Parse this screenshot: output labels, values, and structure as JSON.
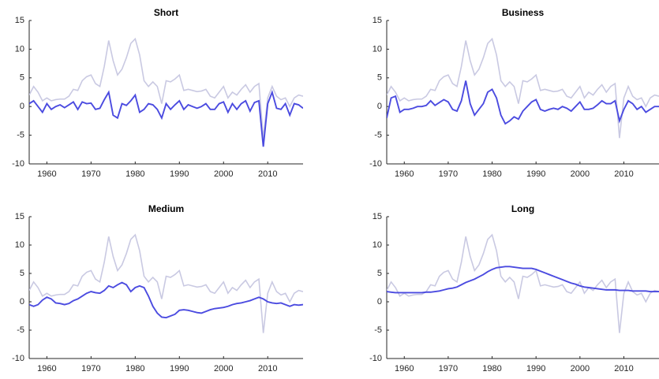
{
  "chart_data": [
    {
      "type": "line",
      "title": "Short",
      "x": [
        1956,
        1957,
        1958,
        1959,
        1960,
        1961,
        1962,
        1963,
        1964,
        1965,
        1966,
        1967,
        1968,
        1969,
        1970,
        1971,
        1972,
        1973,
        1974,
        1975,
        1976,
        1977,
        1978,
        1979,
        1980,
        1981,
        1982,
        1983,
        1984,
        1985,
        1986,
        1987,
        1988,
        1989,
        1990,
        1991,
        1992,
        1993,
        1994,
        1995,
        1996,
        1997,
        1998,
        1999,
        2000,
        2001,
        2002,
        2003,
        2004,
        2005,
        2006,
        2007,
        2008,
        2009,
        2010,
        2011,
        2012,
        2013,
        2014,
        2015,
        2016,
        2017,
        2018
      ],
      "xlim": [
        1956,
        2018
      ],
      "ylim": [
        -10,
        15
      ],
      "xticks": [
        1960,
        1970,
        1980,
        1990,
        2000,
        2010
      ],
      "yticks": [
        -10,
        -5,
        0,
        5,
        10,
        15
      ],
      "series": [
        {
          "color": "#c9c9e2",
          "values": [
            2,
            3.5,
            2.5,
            1,
            1.5,
            1,
            1.2,
            1.3,
            1.3,
            1.8,
            3,
            2.8,
            4.5,
            5.2,
            5.5,
            4,
            3.5,
            7,
            11.5,
            8,
            5.5,
            6.5,
            8.5,
            11,
            11.8,
            9,
            4.5,
            3.5,
            4.3,
            3.5,
            0.5,
            4.5,
            4.3,
            4.8,
            5.5,
            2.8,
            3,
            2.8,
            2.6,
            2.7,
            3,
            1.8,
            1.5,
            2.5,
            3.5,
            1.5,
            2.5,
            2,
            3,
            3.8,
            2.5,
            3.5,
            4,
            -5.5,
            1.5,
            3.5,
            1.8,
            1.2,
            1.5,
            0,
            1.5,
            2,
            1.8
          ]
        },
        {
          "color": "#4b4be0",
          "values": [
            0.5,
            1,
            0,
            -1,
            0.5,
            -0.5,
            0,
            0.3,
            -0.2,
            0.3,
            0.8,
            -0.5,
            0.8,
            0.5,
            0.6,
            -0.5,
            -0.3,
            1.2,
            2.5,
            -1.5,
            -2,
            0.5,
            0.2,
            1,
            2,
            -1,
            -0.5,
            0.5,
            0.3,
            -0.5,
            -2,
            0.5,
            -0.5,
            0.3,
            1,
            -0.5,
            0.3,
            0,
            -0.3,
            0,
            0.5,
            -0.5,
            -0.5,
            0.5,
            0.8,
            -1,
            0.5,
            -0.5,
            0.5,
            1,
            -0.8,
            0.7,
            1,
            -7,
            0.5,
            2.5,
            -0.3,
            -0.5,
            0.5,
            -1.5,
            0.5,
            0.3,
            -0.3
          ]
        }
      ]
    },
    {
      "type": "line",
      "title": "Business",
      "x": [
        1956,
        1957,
        1958,
        1959,
        1960,
        1961,
        1962,
        1963,
        1964,
        1965,
        1966,
        1967,
        1968,
        1969,
        1970,
        1971,
        1972,
        1973,
        1974,
        1975,
        1976,
        1977,
        1978,
        1979,
        1980,
        1981,
        1982,
        1983,
        1984,
        1985,
        1986,
        1987,
        1988,
        1989,
        1990,
        1991,
        1992,
        1993,
        1994,
        1995,
        1996,
        1997,
        1998,
        1999,
        2000,
        2001,
        2002,
        2003,
        2004,
        2005,
        2006,
        2007,
        2008,
        2009,
        2010,
        2011,
        2012,
        2013,
        2014,
        2015,
        2016,
        2017,
        2018
      ],
      "xlim": [
        1956,
        2018
      ],
      "ylim": [
        -10,
        15
      ],
      "xticks": [
        1960,
        1970,
        1980,
        1990,
        2000,
        2010
      ],
      "yticks": [
        -10,
        -5,
        0,
        5,
        10,
        15
      ],
      "series": [
        {
          "color": "#c9c9e2",
          "values": [
            2,
            3.5,
            2.5,
            1,
            1.5,
            1,
            1.2,
            1.3,
            1.3,
            1.8,
            3,
            2.8,
            4.5,
            5.2,
            5.5,
            4,
            3.5,
            7,
            11.5,
            8,
            5.5,
            6.5,
            8.5,
            11,
            11.8,
            9,
            4.5,
            3.5,
            4.3,
            3.5,
            0.5,
            4.5,
            4.3,
            4.8,
            5.5,
            2.8,
            3,
            2.8,
            2.6,
            2.7,
            3,
            1.8,
            1.5,
            2.5,
            3.5,
            1.5,
            2.5,
            2,
            3,
            3.8,
            2.5,
            3.5,
            4,
            -5.5,
            1.5,
            3.5,
            1.8,
            1.2,
            1.5,
            0,
            1.5,
            2,
            1.8
          ]
        },
        {
          "color": "#4b4be0",
          "values": [
            -2,
            1.5,
            1.8,
            -1,
            -0.5,
            -0.5,
            -0.3,
            0,
            0,
            0.2,
            1,
            0.2,
            0.7,
            1.2,
            0.8,
            -0.5,
            -0.8,
            1,
            4.5,
            0.5,
            -1.5,
            -0.5,
            0.5,
            2.5,
            3,
            1.5,
            -1.5,
            -3,
            -2.5,
            -1.8,
            -2.2,
            -0.8,
            0,
            0.8,
            1.2,
            -0.5,
            -0.8,
            -0.5,
            -0.3,
            -0.5,
            0,
            -0.3,
            -0.8,
            0,
            0.8,
            -0.5,
            -0.5,
            -0.3,
            0.3,
            1,
            0.5,
            0.5,
            1,
            -2.5,
            -0.5,
            1,
            0.5,
            -0.5,
            0,
            -1,
            -0.5,
            0,
            0
          ]
        }
      ]
    },
    {
      "type": "line",
      "title": "Medium",
      "x": [
        1956,
        1957,
        1958,
        1959,
        1960,
        1961,
        1962,
        1963,
        1964,
        1965,
        1966,
        1967,
        1968,
        1969,
        1970,
        1971,
        1972,
        1973,
        1974,
        1975,
        1976,
        1977,
        1978,
        1979,
        1980,
        1981,
        1982,
        1983,
        1984,
        1985,
        1986,
        1987,
        1988,
        1989,
        1990,
        1991,
        1992,
        1993,
        1994,
        1995,
        1996,
        1997,
        1998,
        1999,
        2000,
        2001,
        2002,
        2003,
        2004,
        2005,
        2006,
        2007,
        2008,
        2009,
        2010,
        2011,
        2012,
        2013,
        2014,
        2015,
        2016,
        2017,
        2018
      ],
      "xlim": [
        1956,
        2018
      ],
      "ylim": [
        -10,
        15
      ],
      "xticks": [
        1960,
        1970,
        1980,
        1990,
        2000,
        2010
      ],
      "yticks": [
        -10,
        -5,
        0,
        5,
        10,
        15
      ],
      "series": [
        {
          "color": "#c9c9e2",
          "values": [
            2,
            3.5,
            2.5,
            1,
            1.5,
            1,
            1.2,
            1.3,
            1.3,
            1.8,
            3,
            2.8,
            4.5,
            5.2,
            5.5,
            4,
            3.5,
            7,
            11.5,
            8,
            5.5,
            6.5,
            8.5,
            11,
            11.8,
            9,
            4.5,
            3.5,
            4.3,
            3.5,
            0.5,
            4.5,
            4.3,
            4.8,
            5.5,
            2.8,
            3,
            2.8,
            2.6,
            2.7,
            3,
            1.8,
            1.5,
            2.5,
            3.5,
            1.5,
            2.5,
            2,
            3,
            3.8,
            2.5,
            3.5,
            4,
            -5.5,
            1.5,
            3.5,
            1.8,
            1.2,
            1.5,
            0,
            1.5,
            2,
            1.8
          ]
        },
        {
          "color": "#4b4be0",
          "values": [
            -0.5,
            -0.8,
            -0.5,
            0.3,
            0.8,
            0.5,
            -0.2,
            -0.3,
            -0.5,
            -0.3,
            0.2,
            0.5,
            1,
            1.5,
            1.8,
            1.6,
            1.5,
            2,
            2.8,
            2.5,
            3,
            3.4,
            3,
            1.8,
            2.5,
            2.8,
            2.5,
            1,
            -0.8,
            -2,
            -2.7,
            -2.8,
            -2.5,
            -2.2,
            -1.5,
            -1.4,
            -1.5,
            -1.7,
            -1.9,
            -2,
            -1.7,
            -1.4,
            -1.2,
            -1.1,
            -1,
            -0.8,
            -0.5,
            -0.3,
            -0.2,
            0,
            0.2,
            0.5,
            0.8,
            0.5,
            0,
            -0.2,
            -0.3,
            -0.2,
            -0.5,
            -0.8,
            -0.5,
            -0.6,
            -0.5
          ]
        }
      ]
    },
    {
      "type": "line",
      "title": "Long",
      "x": [
        1956,
        1957,
        1958,
        1959,
        1960,
        1961,
        1962,
        1963,
        1964,
        1965,
        1966,
        1967,
        1968,
        1969,
        1970,
        1971,
        1972,
        1973,
        1974,
        1975,
        1976,
        1977,
        1978,
        1979,
        1980,
        1981,
        1982,
        1983,
        1984,
        1985,
        1986,
        1987,
        1988,
        1989,
        1990,
        1991,
        1992,
        1993,
        1994,
        1995,
        1996,
        1997,
        1998,
        1999,
        2000,
        2001,
        2002,
        2003,
        2004,
        2005,
        2006,
        2007,
        2008,
        2009,
        2010,
        2011,
        2012,
        2013,
        2014,
        2015,
        2016,
        2017,
        2018
      ],
      "xlim": [
        1956,
        2018
      ],
      "ylim": [
        -10,
        15
      ],
      "xticks": [
        1960,
        1970,
        1980,
        1990,
        2000,
        2010
      ],
      "yticks": [
        -10,
        -5,
        0,
        5,
        10,
        15
      ],
      "series": [
        {
          "color": "#c9c9e2",
          "values": [
            2,
            3.5,
            2.5,
            1,
            1.5,
            1,
            1.2,
            1.3,
            1.3,
            1.8,
            3,
            2.8,
            4.5,
            5.2,
            5.5,
            4,
            3.5,
            7,
            11.5,
            8,
            5.5,
            6.5,
            8.5,
            11,
            11.8,
            9,
            4.5,
            3.5,
            4.3,
            3.5,
            0.5,
            4.5,
            4.3,
            4.8,
            5.5,
            2.8,
            3,
            2.8,
            2.6,
            2.7,
            3,
            1.8,
            1.5,
            2.5,
            3.5,
            1.5,
            2.5,
            2,
            3,
            3.8,
            2.5,
            3.5,
            4,
            -5.5,
            1.5,
            3.5,
            1.8,
            1.2,
            1.5,
            0,
            1.5,
            2,
            1.8
          ]
        },
        {
          "color": "#4b4be0",
          "values": [
            1.8,
            1.7,
            1.6,
            1.6,
            1.6,
            1.6,
            1.6,
            1.6,
            1.6,
            1.7,
            1.7,
            1.8,
            1.9,
            2.1,
            2.3,
            2.4,
            2.6,
            3,
            3.4,
            3.7,
            4,
            4.4,
            4.8,
            5.3,
            5.7,
            6,
            6.1,
            6.2,
            6.2,
            6.1,
            6,
            5.9,
            5.9,
            5.9,
            5.7,
            5.4,
            5.1,
            4.8,
            4.5,
            4.2,
            3.9,
            3.6,
            3.3,
            3.1,
            2.8,
            2.6,
            2.5,
            2.4,
            2.3,
            2.2,
            2.1,
            2.1,
            2.1,
            2,
            2,
            2,
            1.9,
            1.9,
            1.9,
            1.9,
            1.8,
            1.8,
            1.8
          ]
        }
      ]
    }
  ]
}
